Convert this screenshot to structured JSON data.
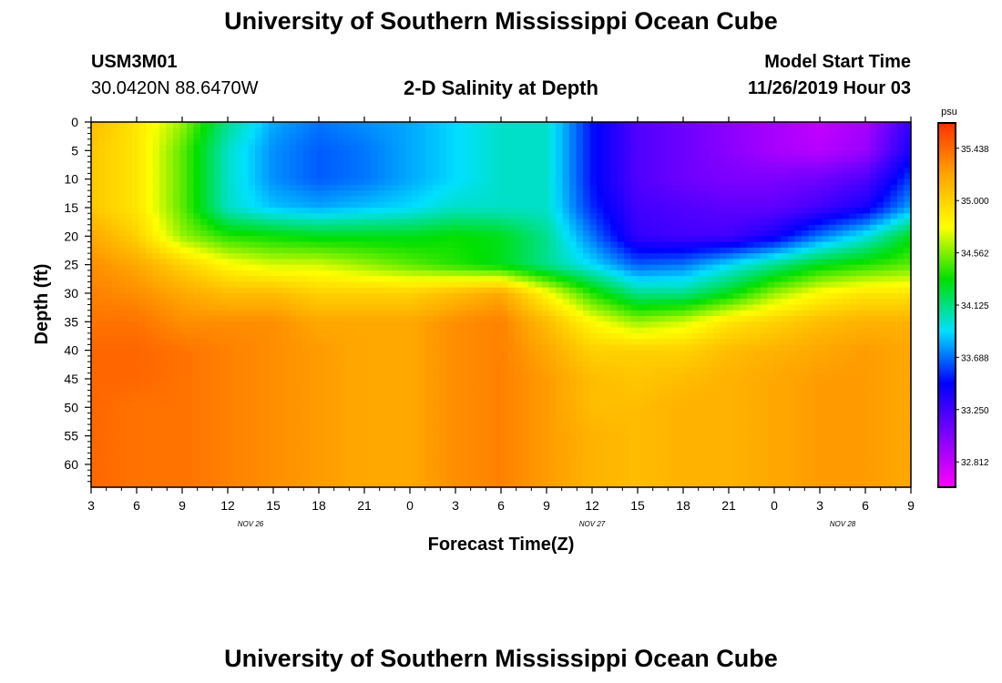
{
  "header": {
    "title": "University of Southern Mississippi Ocean Cube",
    "station_id": "USM3M01",
    "station_position": "30.0420N 88.6470W",
    "chart_title": "2-D Salinity at Depth",
    "model_start_label": "Model Start Time",
    "model_start_value": "11/26/2019 Hour 03"
  },
  "footer": {
    "title": "University of Southern Mississippi Ocean Cube"
  },
  "colors": {
    "scale": [
      "#ff00ff",
      "#8000ff",
      "#0000ff",
      "#00e0ff",
      "#00e000",
      "#ffff00",
      "#ffa500",
      "#ff3000"
    ]
  },
  "chart_data": {
    "type": "heatmap",
    "title": "2-D Salinity at Depth",
    "xlabel": "Forecast Time(Z)",
    "ylabel": "Depth (ft)",
    "x_hours_from_start": [
      0,
      3,
      6,
      9,
      12,
      15,
      18,
      21,
      24,
      27,
      30,
      33,
      36,
      39,
      42,
      45,
      48,
      51,
      54
    ],
    "x_tick_labels": [
      "3",
      "6",
      "9",
      "12",
      "15",
      "18",
      "21",
      "0",
      "3",
      "6",
      "9",
      "12",
      "15",
      "18",
      "21",
      "0",
      "3",
      "6",
      "9"
    ],
    "date_labels": [
      {
        "text": "NOV 26",
        "hour": 10.5
      },
      {
        "text": "NOV 27",
        "hour": 33
      },
      {
        "text": "NOV 28",
        "hour": 49.5
      }
    ],
    "xlim": [
      0,
      54
    ],
    "ylim": [
      0,
      64
    ],
    "y_ticks": [
      0,
      5,
      10,
      15,
      20,
      25,
      30,
      35,
      40,
      45,
      50,
      55,
      60
    ],
    "depths": [
      0,
      5,
      10,
      15,
      20,
      25,
      30,
      35,
      40,
      45,
      50,
      55,
      64
    ],
    "salinity": [
      [
        35.1,
        34.9,
        34.6,
        34.1,
        33.8,
        33.7,
        33.75,
        33.8,
        33.9,
        34.0,
        34.0,
        33.5,
        33.2,
        33.1,
        33.0,
        32.9,
        32.8,
        32.9,
        33.3
      ],
      [
        35.05,
        34.9,
        34.5,
        34.0,
        33.75,
        33.65,
        33.7,
        33.8,
        33.9,
        34.0,
        34.0,
        33.5,
        33.2,
        33.1,
        33.0,
        32.9,
        32.85,
        32.95,
        33.4
      ],
      [
        35.05,
        34.9,
        34.5,
        34.0,
        33.75,
        33.65,
        33.7,
        33.8,
        33.9,
        34.0,
        34.0,
        33.5,
        33.2,
        33.1,
        33.05,
        33.05,
        33.1,
        33.2,
        33.6
      ],
      [
        35.05,
        34.9,
        34.5,
        34.0,
        33.85,
        33.8,
        33.85,
        33.9,
        34.0,
        34.0,
        34.0,
        33.55,
        33.25,
        33.2,
        33.15,
        33.15,
        33.25,
        33.4,
        33.8
      ],
      [
        35.2,
        35.0,
        34.6,
        34.4,
        34.35,
        34.3,
        34.3,
        34.3,
        34.35,
        34.3,
        34.1,
        33.7,
        33.3,
        33.25,
        33.25,
        33.4,
        33.7,
        33.95,
        34.3
      ],
      [
        35.3,
        35.2,
        35.0,
        34.8,
        34.7,
        34.7,
        34.6,
        34.5,
        34.4,
        34.3,
        34.1,
        33.9,
        33.65,
        33.7,
        33.9,
        34.1,
        34.3,
        34.4,
        34.5
      ],
      [
        35.35,
        35.3,
        35.2,
        35.1,
        35.1,
        35.0,
        35.0,
        35.0,
        35.1,
        35.2,
        34.8,
        34.4,
        34.1,
        34.1,
        34.3,
        34.6,
        34.8,
        34.9,
        34.9
      ],
      [
        35.4,
        35.4,
        35.3,
        35.3,
        35.3,
        35.2,
        35.2,
        35.2,
        35.3,
        35.35,
        35.1,
        34.8,
        34.6,
        34.7,
        34.9,
        35.0,
        35.1,
        35.15,
        35.15
      ],
      [
        35.45,
        35.45,
        35.4,
        35.35,
        35.3,
        35.25,
        35.2,
        35.2,
        35.3,
        35.35,
        35.2,
        35.0,
        35.0,
        35.0,
        35.1,
        35.15,
        35.2,
        35.25,
        35.2
      ],
      [
        35.45,
        35.45,
        35.4,
        35.35,
        35.3,
        35.25,
        35.2,
        35.2,
        35.3,
        35.35,
        35.25,
        35.1,
        35.05,
        35.1,
        35.15,
        35.2,
        35.25,
        35.25,
        35.2
      ],
      [
        35.45,
        35.4,
        35.4,
        35.35,
        35.3,
        35.25,
        35.2,
        35.2,
        35.3,
        35.35,
        35.25,
        35.1,
        35.1,
        35.15,
        35.15,
        35.2,
        35.25,
        35.25,
        35.2
      ],
      [
        35.45,
        35.4,
        35.4,
        35.35,
        35.3,
        35.25,
        35.2,
        35.2,
        35.3,
        35.35,
        35.25,
        35.15,
        35.1,
        35.15,
        35.15,
        35.2,
        35.25,
        35.25,
        35.2
      ],
      [
        35.45,
        35.4,
        35.4,
        35.35,
        35.3,
        35.25,
        35.2,
        35.2,
        35.3,
        35.35,
        35.25,
        35.15,
        35.1,
        35.15,
        35.15,
        35.2,
        35.25,
        35.25,
        35.2
      ]
    ],
    "colorbar": {
      "unit": "psu",
      "min": 32.6,
      "max": 35.65,
      "labels": [
        "35.438",
        "35.000",
        "34.562",
        "34.125",
        "33.688",
        "33.250",
        "32.812"
      ],
      "label_values": [
        35.438,
        35.0,
        34.562,
        34.125,
        33.688,
        33.25,
        32.812
      ]
    }
  }
}
